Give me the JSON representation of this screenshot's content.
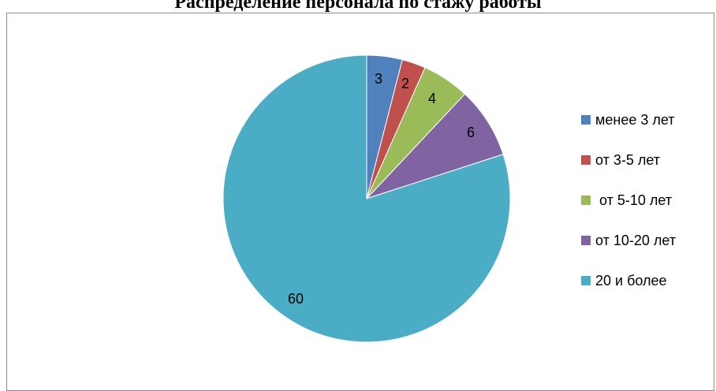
{
  "chart_data": {
    "type": "pie",
    "title": "Распределение персонала по стажу работы",
    "categories": [
      "менее 3 лет",
      "от 3-5 лет",
      " от 5-10 лет",
      "от 10-20 лет",
      "20 и более"
    ],
    "values": [
      3,
      2,
      4,
      6,
      60
    ],
    "colors": [
      "#4f81bd",
      "#c0504d",
      "#9bbb59",
      "#8064a2",
      "#4bacc6"
    ],
    "data_labels": true,
    "legend_position": "right"
  }
}
